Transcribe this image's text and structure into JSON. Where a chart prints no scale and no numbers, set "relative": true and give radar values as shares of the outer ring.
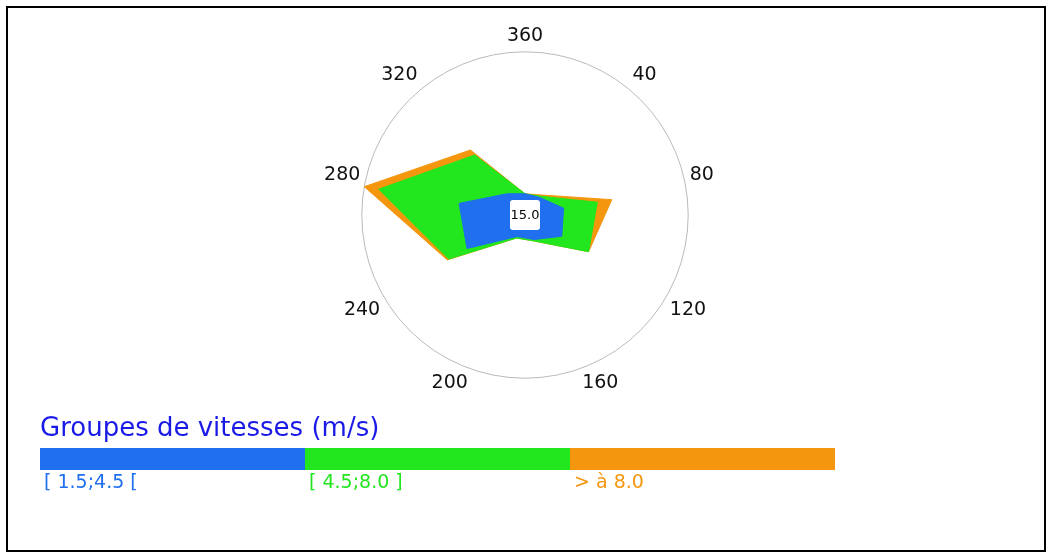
{
  "chart_data": {
    "type": "radar",
    "relative": true,
    "categories": [
      "360",
      "40",
      "80",
      "120",
      "160",
      "200",
      "240",
      "280",
      "320"
    ],
    "series": [
      {
        "name": "[ 1.5;4.5 [",
        "color": "#1f6fef",
        "values": [
          0.13,
          0.14,
          0.24,
          0.26,
          0.16,
          0.14,
          0.41,
          0.41,
          0.17
        ]
      },
      {
        "name": "[ 4.5;8.0 ]",
        "color": "#22e61e",
        "values": [
          0.13,
          0.15,
          0.45,
          0.45,
          0.17,
          0.15,
          0.54,
          0.91,
          0.48
        ]
      },
      {
        "name": "> à 8.0",
        "color": "#f5960f",
        "values": [
          0.13,
          0.16,
          0.54,
          0.45,
          0.17,
          0.15,
          0.55,
          1,
          0.52
        ]
      }
    ],
    "legend_title": "Groupes de vitesses (m/s)",
    "legend": "bottom left",
    "grid": false,
    "annotations": [
      "15.0"
    ]
  }
}
